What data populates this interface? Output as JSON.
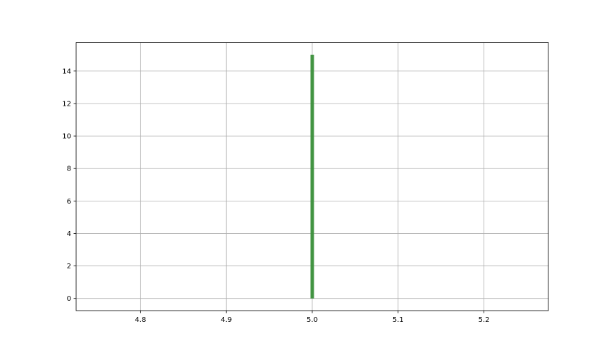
{
  "chart_data": {
    "type": "line",
    "title": "",
    "xlabel": "",
    "ylabel": "",
    "xlim": [
      4.725,
      5.275
    ],
    "ylim": [
      -0.75,
      15.75
    ],
    "grid": true,
    "xticks": [
      4.8,
      4.9,
      5.0,
      5.1,
      5.2
    ],
    "xtick_labels": [
      "4.8",
      "4.9",
      "5.0",
      "5.1",
      "5.2"
    ],
    "yticks": [
      0,
      2,
      4,
      6,
      8,
      10,
      12,
      14
    ],
    "ytick_labels": [
      "0",
      "2",
      "4",
      "6",
      "8",
      "10",
      "12",
      "14"
    ],
    "series": [
      {
        "x": [
          5.0,
          5.0
        ],
        "y": [
          0,
          15
        ],
        "color": "#3a8f3a"
      }
    ],
    "colors": {
      "grid": "#b0b0b0",
      "axes": "#000000",
      "series": "#3a8f3a"
    }
  }
}
